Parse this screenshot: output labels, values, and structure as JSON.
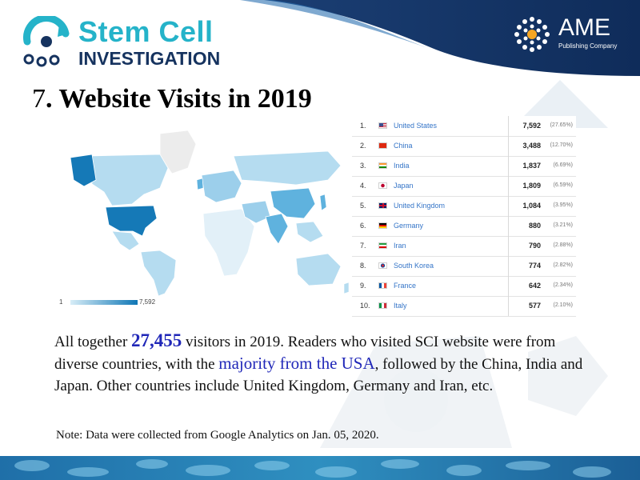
{
  "header": {
    "sci_line1": "Stem Cell",
    "sci_line2": "INVESTIGATION",
    "ame_name": "AME",
    "ame_sub": "Publishing Company"
  },
  "title": {
    "number": "7",
    "text": ". Website Visits in 2019"
  },
  "map": {
    "legend_min": "1",
    "legend_max": "7,592",
    "colors": {
      "high": "#1579b7",
      "mid": "#5fb2de",
      "low": "#b5dcf0",
      "none": "#e9e9e9"
    }
  },
  "table": {
    "rows": [
      {
        "rank": "1.",
        "country": "United States",
        "value": "7,592",
        "pct": "(27.65%)"
      },
      {
        "rank": "2.",
        "country": "China",
        "value": "3,488",
        "pct": "(12.70%)"
      },
      {
        "rank": "3.",
        "country": "India",
        "value": "1,837",
        "pct": "(6.69%)"
      },
      {
        "rank": "4.",
        "country": "Japan",
        "value": "1,809",
        "pct": "(6.59%)"
      },
      {
        "rank": "5.",
        "country": "United Kingdom",
        "value": "1,084",
        "pct": "(3.95%)"
      },
      {
        "rank": "6.",
        "country": "Germany",
        "value": "880",
        "pct": "(3.21%)"
      },
      {
        "rank": "7.",
        "country": "Iran",
        "value": "790",
        "pct": "(2.88%)"
      },
      {
        "rank": "8.",
        "country": "South Korea",
        "value": "774",
        "pct": "(2.82%)"
      },
      {
        "rank": "9.",
        "country": "France",
        "value": "642",
        "pct": "(2.34%)"
      },
      {
        "rank": "10.",
        "country": "Italy",
        "value": "577",
        "pct": "(2.10%)"
      }
    ]
  },
  "body": {
    "p1": "All together ",
    "total": "27,455",
    "p2": " visitors in 2019. Readers who visited SCI website were from diverse countries, with the ",
    "majority": "majority from the USA",
    "p3": ", followed by the China, India and Japan. Other countries include United Kingdom, Germany and Iran, etc."
  },
  "note": "Note: Data were collected from Google Analytics on Jan. 05, 2020.",
  "colors": {
    "navy": "#16335f",
    "teal": "#25b3c9",
    "highlight": "#2027b8"
  }
}
